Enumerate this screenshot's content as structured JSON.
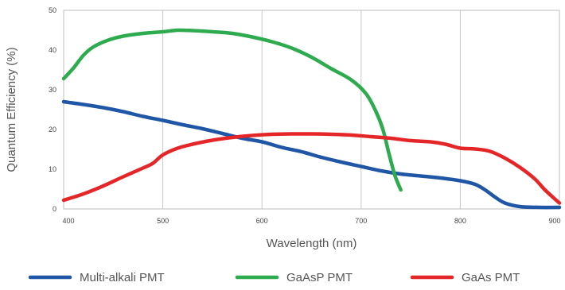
{
  "chart_data": {
    "type": "line",
    "xlabel": "Wavelength (nm)",
    "ylabel": "Quantum Efficiency (%)",
    "xlim": [
      400,
      900
    ],
    "ylim": [
      0,
      50
    ],
    "x_ticks": [
      "400",
      "500",
      "600",
      "700",
      "800",
      "900"
    ],
    "y_ticks": [
      "0",
      "10",
      "20",
      "30",
      "40",
      "50"
    ],
    "grid": "vertical",
    "legend_position": "bottom",
    "series": [
      {
        "name": "Multi-alkali PMT",
        "color": "#1f56a6",
        "points": [
          [
            400,
            27.0
          ],
          [
            420,
            26.3
          ],
          [
            440,
            25.5
          ],
          [
            460,
            24.5
          ],
          [
            480,
            23.3
          ],
          [
            500,
            22.3
          ],
          [
            520,
            21.2
          ],
          [
            540,
            20.2
          ],
          [
            560,
            19.0
          ],
          [
            580,
            17.8
          ],
          [
            600,
            16.9
          ],
          [
            620,
            15.5
          ],
          [
            640,
            14.4
          ],
          [
            660,
            13.0
          ],
          [
            680,
            11.8
          ],
          [
            700,
            10.7
          ],
          [
            720,
            9.6
          ],
          [
            740,
            8.8
          ],
          [
            760,
            8.3
          ],
          [
            780,
            7.8
          ],
          [
            800,
            7.1
          ],
          [
            815,
            6.2
          ],
          [
            825,
            4.8
          ],
          [
            835,
            3.0
          ],
          [
            845,
            1.5
          ],
          [
            860,
            0.6
          ],
          [
            880,
            0.4
          ],
          [
            900,
            0.4
          ]
        ]
      },
      {
        "name": "GaAsP PMT",
        "color": "#2eab4f",
        "points": [
          [
            400,
            32.8
          ],
          [
            410,
            35.5
          ],
          [
            420,
            38.7
          ],
          [
            430,
            40.8
          ],
          [
            445,
            42.5
          ],
          [
            460,
            43.5
          ],
          [
            480,
            44.2
          ],
          [
            500,
            44.6
          ],
          [
            515,
            45.0
          ],
          [
            530,
            44.9
          ],
          [
            550,
            44.6
          ],
          [
            570,
            44.2
          ],
          [
            590,
            43.3
          ],
          [
            610,
            42.1
          ],
          [
            630,
            40.5
          ],
          [
            650,
            38.2
          ],
          [
            670,
            35.3
          ],
          [
            690,
            32.5
          ],
          [
            705,
            29.0
          ],
          [
            715,
            24.5
          ],
          [
            722,
            20.0
          ],
          [
            728,
            14.0
          ],
          [
            734,
            8.5
          ],
          [
            740,
            4.8
          ]
        ]
      },
      {
        "name": "GaAs PMT",
        "color": "#e52629",
        "points": [
          [
            400,
            2.2
          ],
          [
            420,
            3.8
          ],
          [
            440,
            5.8
          ],
          [
            460,
            8.1
          ],
          [
            480,
            10.3
          ],
          [
            490,
            11.5
          ],
          [
            500,
            13.6
          ],
          [
            515,
            15.3
          ],
          [
            530,
            16.3
          ],
          [
            550,
            17.3
          ],
          [
            570,
            18.0
          ],
          [
            590,
            18.5
          ],
          [
            610,
            18.8
          ],
          [
            630,
            18.9
          ],
          [
            650,
            18.9
          ],
          [
            670,
            18.8
          ],
          [
            690,
            18.6
          ],
          [
            710,
            18.2
          ],
          [
            730,
            17.8
          ],
          [
            750,
            17.2
          ],
          [
            770,
            16.9
          ],
          [
            785,
            16.3
          ],
          [
            800,
            15.3
          ],
          [
            815,
            15.1
          ],
          [
            830,
            14.5
          ],
          [
            845,
            12.8
          ],
          [
            860,
            10.5
          ],
          [
            875,
            7.6
          ],
          [
            885,
            4.9
          ],
          [
            895,
            2.6
          ],
          [
            900,
            1.5
          ]
        ]
      }
    ]
  }
}
